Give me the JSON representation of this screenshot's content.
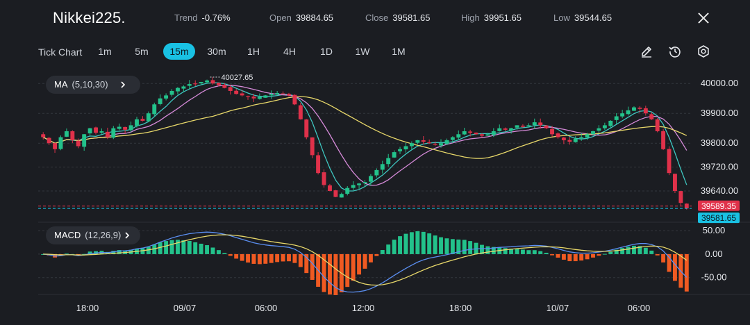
{
  "header": {
    "symbol": "Nikkei225.",
    "trend_label": "Trend",
    "trend_value": "-0.76%",
    "open_label": "Open",
    "open_value": "39884.65",
    "close_label": "Close",
    "close_value": "39581.65",
    "high_label": "High",
    "high_value": "39951.65",
    "low_label": "Low",
    "low_value": "39544.65"
  },
  "toolbar": {
    "tick_chart_label": "Tick Chart",
    "timeframes": [
      "1m",
      "5m",
      "15m",
      "30m",
      "1H",
      "4H",
      "1D",
      "1W",
      "1M"
    ],
    "active_timeframe": "15m",
    "tools": [
      "pencil-icon",
      "clock-reset-icon",
      "settings-icon"
    ]
  },
  "indicators": {
    "ma_label": "MA",
    "ma_params": "(5,10,30)",
    "macd_label": "MACD",
    "macd_params": "(12,26,9)"
  },
  "colors": {
    "background": "#1b1d22",
    "up": "#23c28b",
    "down": "#e0314a",
    "ma5": "#3ec6c0",
    "ma10": "#d58ad8",
    "ma30": "#e8d86a",
    "macd_line": "#5b8ff2",
    "signal_line": "#e8d86a",
    "hist_pos": "#23c28b",
    "hist_neg": "#f05a22",
    "accent": "#19c1e3"
  },
  "chart_data": [
    {
      "type": "candlestick",
      "x_tick_labels": [
        "18:00",
        "09/07",
        "06:00",
        "12:00",
        "18:00",
        "10/07",
        "06:00"
      ],
      "y_tick_labels": [
        "40000.00",
        "39900.00",
        "39800.00",
        "39720.00",
        "39640.00"
      ],
      "ylim": [
        39540,
        40040
      ],
      "max_annotation": "40027.65",
      "last_price": "39581.65",
      "ref_price": "39589.35",
      "close_series": [
        39820,
        39800,
        39780,
        39820,
        39840,
        39810,
        39790,
        39830,
        39850,
        39835,
        39840,
        39820,
        39850,
        39855,
        39845,
        39860,
        39880,
        39875,
        39900,
        39930,
        39950,
        39960,
        39975,
        39985,
        39990,
        39998,
        40000,
        40005,
        40010,
        40000,
        39995,
        39985,
        39975,
        39965,
        39960,
        39955,
        39950,
        39955,
        39960,
        39965,
        39968,
        39966,
        39960,
        39930,
        39880,
        39820,
        39760,
        39700,
        39660,
        39640,
        39620,
        39630,
        39650,
        39660,
        39665,
        39670,
        39690,
        39710,
        39730,
        39750,
        39770,
        39780,
        39790,
        39800,
        39810,
        39805,
        39800,
        39795,
        39800,
        39810,
        39820,
        39830,
        39840,
        39835,
        39830,
        39825,
        39830,
        39840,
        39850,
        39845,
        39850,
        39860,
        39855,
        39860,
        39870,
        39860,
        39850,
        39830,
        39820,
        39810,
        39805,
        39815,
        39820,
        39830,
        39840,
        39850,
        39860,
        39875,
        39890,
        39900,
        39910,
        39920,
        39915,
        39900,
        39880,
        39840,
        39780,
        39700,
        39640,
        39600,
        39582
      ],
      "ma_series": [
        {
          "name": "MA5"
        },
        {
          "name": "MA10"
        },
        {
          "name": "MA30"
        }
      ]
    },
    {
      "type": "bar",
      "y_tick_labels": [
        "50.00",
        "0.00",
        "-50.00"
      ],
      "ylim": [
        -80,
        65
      ],
      "series": [
        {
          "name": "MACD"
        },
        {
          "name": "Signal"
        }
      ]
    }
  ]
}
